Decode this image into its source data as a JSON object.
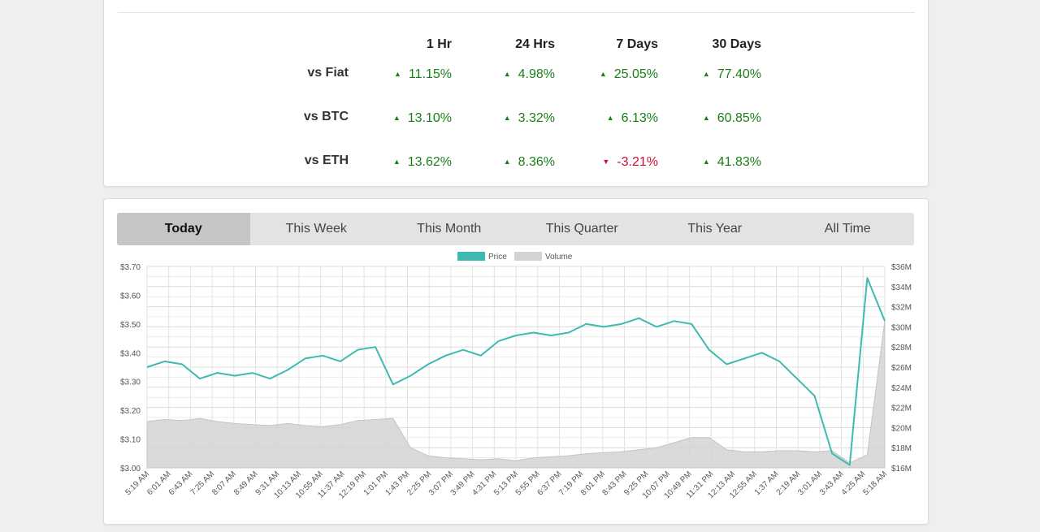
{
  "performance": {
    "headers": [
      "1 Hr",
      "24 Hrs",
      "7 Days",
      "30 Days"
    ],
    "rows": [
      {
        "label": "vs Fiat",
        "values": [
          {
            "text": "11.15%",
            "dir": "up"
          },
          {
            "text": "4.98%",
            "dir": "up"
          },
          {
            "text": "25.05%",
            "dir": "up"
          },
          {
            "text": "77.40%",
            "dir": "up"
          }
        ]
      },
      {
        "label": "vs BTC",
        "values": [
          {
            "text": "13.10%",
            "dir": "up"
          },
          {
            "text": "3.32%",
            "dir": "up"
          },
          {
            "text": "6.13%",
            "dir": "up"
          },
          {
            "text": "60.85%",
            "dir": "up"
          }
        ]
      },
      {
        "label": "vs ETH",
        "values": [
          {
            "text": "13.62%",
            "dir": "up"
          },
          {
            "text": "8.36%",
            "dir": "up"
          },
          {
            "text": "-3.21%",
            "dir": "down"
          },
          {
            "text": "41.83%",
            "dir": "up"
          }
        ]
      }
    ],
    "colors": {
      "up": "#1a7f1a",
      "down": "#c8102e"
    }
  },
  "tabs": [
    "Today",
    "This Week",
    "This Month",
    "This Quarter",
    "This Year",
    "All Time"
  ],
  "active_tab": "Today",
  "chart_data": {
    "type": "line",
    "legend": [
      {
        "name": "Price",
        "color": "#3fbab0"
      },
      {
        "name": "Volume",
        "color": "#d3d3d3"
      }
    ],
    "legend_position": "top-center",
    "grid": true,
    "x_ticks": [
      "5:19 AM",
      "6:01 AM",
      "6:43 AM",
      "7:25 AM",
      "8:07 AM",
      "8:49 AM",
      "9:31 AM",
      "10:13 AM",
      "10:55 AM",
      "11:37 AM",
      "12:19 PM",
      "1:01 PM",
      "1:43 PM",
      "2:25 PM",
      "3:07 PM",
      "3:49 PM",
      "4:31 PM",
      "5:13 PM",
      "5:55 PM",
      "6:37 PM",
      "7:19 PM",
      "8:01 PM",
      "8:43 PM",
      "9:25 PM",
      "10:07 PM",
      "10:49 PM",
      "11:31 PM",
      "12:13 AM",
      "12:55 AM",
      "1:37 AM",
      "2:19 AM",
      "3:01 AM",
      "3:43 AM",
      "4:25 AM",
      "5:18 AM"
    ],
    "y_left": {
      "ticks": [
        "$3.00",
        "$3.10",
        "$3.20",
        "$3.30",
        "$3.40",
        "$3.50",
        "$3.60",
        "$3.70"
      ],
      "range": [
        3.0,
        3.7
      ]
    },
    "y_right": {
      "ticks": [
        "$16M",
        "$18M",
        "$20M",
        "$22M",
        "$24M",
        "$26M",
        "$28M",
        "$30M",
        "$32M",
        "$34M",
        "$36M"
      ],
      "range": [
        16,
        36
      ]
    },
    "series": [
      {
        "name": "Price",
        "axis": "left",
        "values": [
          3.35,
          3.37,
          3.36,
          3.31,
          3.33,
          3.32,
          3.33,
          3.31,
          3.34,
          3.38,
          3.39,
          3.37,
          3.41,
          3.42,
          3.29,
          3.32,
          3.36,
          3.39,
          3.41,
          3.39,
          3.44,
          3.46,
          3.47,
          3.46,
          3.47,
          3.5,
          3.49,
          3.5,
          3.52,
          3.49,
          3.51,
          3.5,
          3.41,
          3.36,
          3.38,
          3.4,
          3.37,
          3.31,
          3.25,
          3.05,
          3.01,
          3.66,
          3.51
        ]
      },
      {
        "name": "Volume",
        "axis": "right",
        "values": [
          20.6,
          20.8,
          20.7,
          20.9,
          20.6,
          20.4,
          20.3,
          20.2,
          20.4,
          20.2,
          20.1,
          20.3,
          20.7,
          20.8,
          20.9,
          18.0,
          17.2,
          17.0,
          16.9,
          16.8,
          16.9,
          16.7,
          17.0,
          17.1,
          17.2,
          17.4,
          17.5,
          17.6,
          17.8,
          18.0,
          18.5,
          19.0,
          19.0,
          17.8,
          17.6,
          17.6,
          17.7,
          17.7,
          17.6,
          17.7,
          16.5,
          17.3,
          30.6
        ]
      }
    ]
  }
}
